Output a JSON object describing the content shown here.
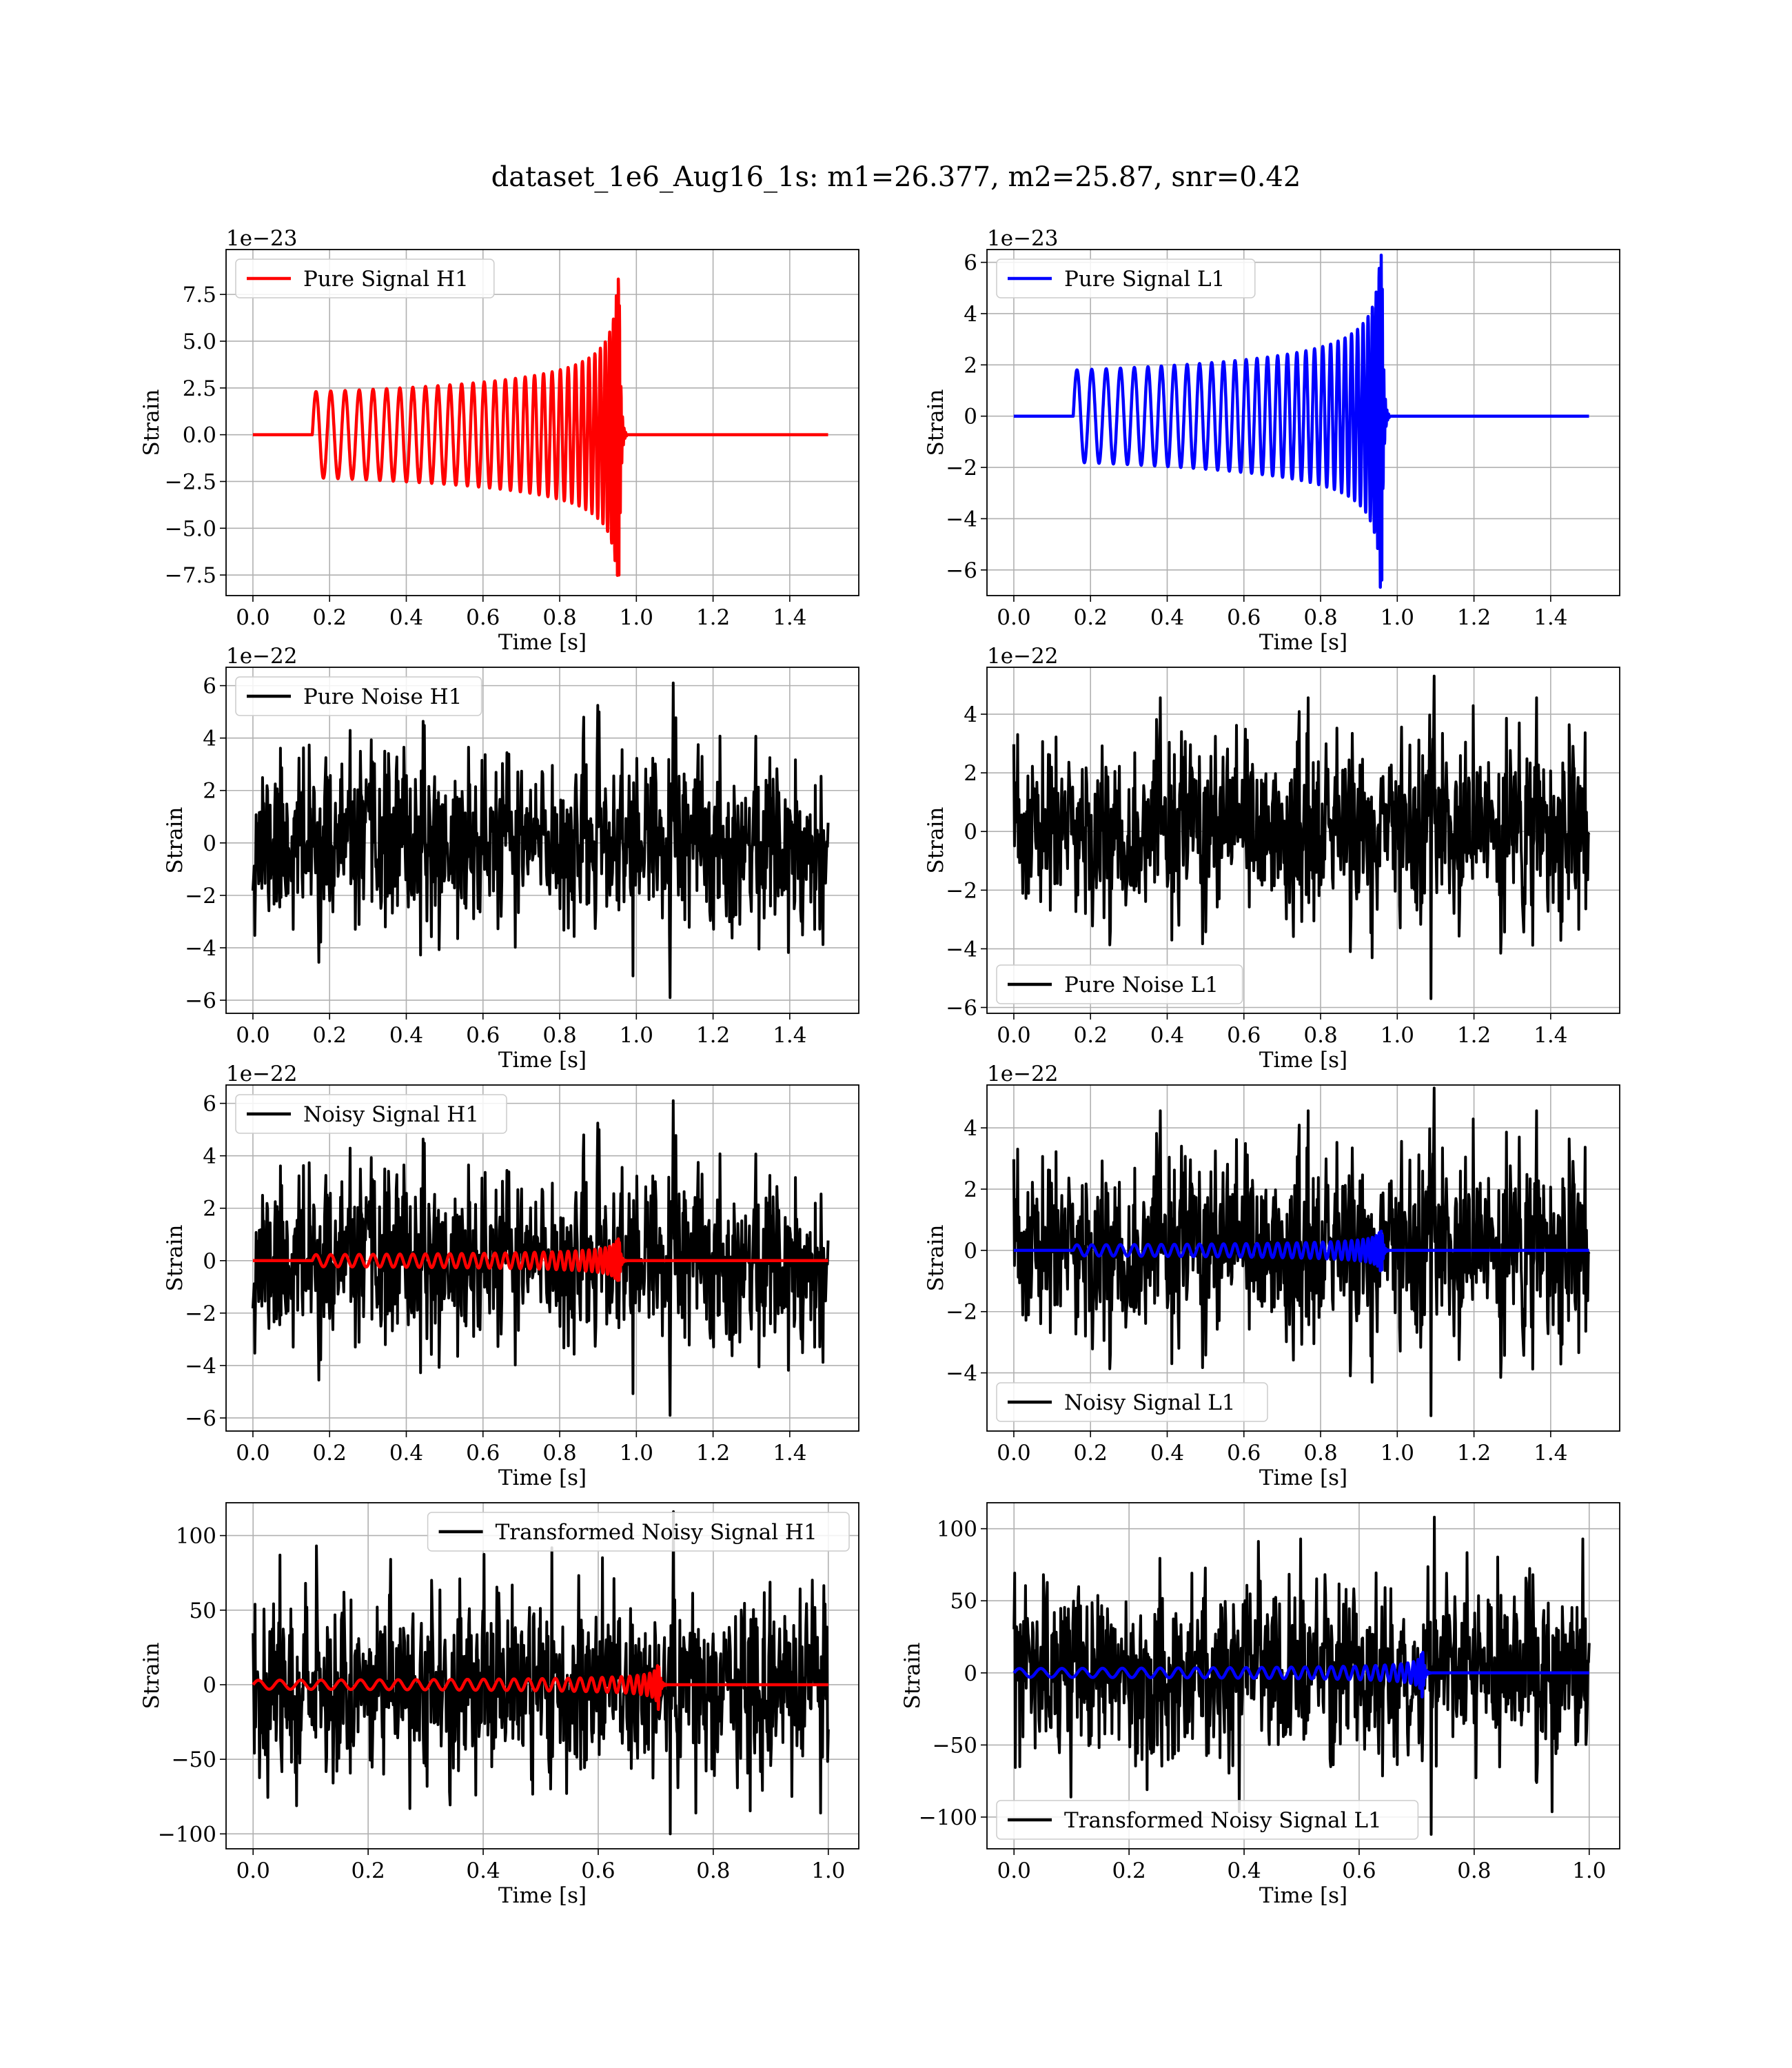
{
  "figure": {
    "suptitle": "dataset_1e6_Aug16_1s: m1=26.377, m2=25.87, snr=0.42"
  },
  "colors": {
    "h1_signal": "#ff0000",
    "l1_signal": "#0000ff",
    "noise": "#000000",
    "grid": "#b0b0b0"
  },
  "chart_data": [
    {
      "type": "line",
      "panel": "pure-signal-h1",
      "xlabel": "Time [s]",
      "ylabel": "Strain",
      "offset_text": "1e−23",
      "xlim": [
        -0.07,
        1.58
      ],
      "ylim": [
        -8.6,
        9.9
      ],
      "xticks": [
        0.0,
        0.2,
        0.4,
        0.6,
        0.8,
        1.0,
        1.2,
        1.4
      ],
      "xtick_labels": [
        "0.0",
        "0.2",
        "0.4",
        "0.6",
        "0.8",
        "1.0",
        "1.2",
        "1.4"
      ],
      "yticks": [
        7.5,
        5.0,
        2.5,
        0.0,
        -2.5,
        -5.0,
        -7.5
      ],
      "ytick_labels": [
        "7.5",
        "5.0",
        "2.5",
        "0.0",
        "−2.5",
        "−5.0",
        "−7.5"
      ],
      "grid": true,
      "legend_loc": "upper-left",
      "series": [
        {
          "name": "Pure Signal H1",
          "color": "#ff0000",
          "kind": "chirp",
          "x_range": [
            0,
            1.5
          ],
          "onset": 0.155,
          "merger": 0.955,
          "base_amp": 2.3,
          "peak_pos": 9.0,
          "peak_neg": -7.7,
          "n_cycles": 33,
          "ringdown": 0.02
        }
      ]
    },
    {
      "type": "line",
      "panel": "pure-signal-l1",
      "xlabel": "Time [s]",
      "ylabel": "Strain",
      "offset_text": "1e−23",
      "xlim": [
        -0.07,
        1.58
      ],
      "ylim": [
        -7.0,
        6.5
      ],
      "xticks": [
        0.0,
        0.2,
        0.4,
        0.6,
        0.8,
        1.0,
        1.2,
        1.4
      ],
      "xtick_labels": [
        "0.0",
        "0.2",
        "0.4",
        "0.6",
        "0.8",
        "1.0",
        "1.2",
        "1.4"
      ],
      "yticks": [
        6,
        4,
        2,
        0,
        -2,
        -4,
        -6
      ],
      "ytick_labels": [
        "6",
        "4",
        "2",
        "0",
        "−2",
        "−4",
        "−6"
      ],
      "grid": true,
      "legend_loc": "upper-left",
      "series": [
        {
          "name": "Pure Signal L1",
          "color": "#0000ff",
          "kind": "chirp",
          "x_range": [
            0,
            1.5
          ],
          "onset": 0.155,
          "merger": 0.96,
          "base_amp": 1.8,
          "peak_pos": 6.3,
          "peak_neg": -6.9,
          "n_cycles": 33,
          "ringdown": 0.02
        }
      ]
    },
    {
      "type": "line",
      "panel": "pure-noise-h1",
      "xlabel": "Time [s]",
      "ylabel": "Strain",
      "offset_text": "1e−22",
      "xlim": [
        -0.07,
        1.58
      ],
      "ylim": [
        -6.5,
        6.7
      ],
      "xticks": [
        0.0,
        0.2,
        0.4,
        0.6,
        0.8,
        1.0,
        1.2,
        1.4
      ],
      "xtick_labels": [
        "0.0",
        "0.2",
        "0.4",
        "0.6",
        "0.8",
        "1.0",
        "1.2",
        "1.4"
      ],
      "yticks": [
        6,
        4,
        2,
        0,
        -2,
        -4,
        -6
      ],
      "ytick_labels": [
        "6",
        "4",
        "2",
        "0",
        "−2",
        "−4",
        "−6"
      ],
      "grid": true,
      "legend_loc": "upper-left",
      "series": [
        {
          "name": "Pure Noise H1",
          "color": "#000000",
          "kind": "noise",
          "x_range": [
            0,
            1.5
          ],
          "max": 6.1,
          "min": -5.9,
          "sigma": 1.6,
          "seed": 11
        }
      ]
    },
    {
      "type": "line",
      "panel": "pure-noise-l1",
      "xlabel": "Time [s]",
      "ylabel": "Strain",
      "offset_text": "1e−22",
      "xlim": [
        -0.07,
        1.58
      ],
      "ylim": [
        -6.2,
        5.6
      ],
      "xticks": [
        0.0,
        0.2,
        0.4,
        0.6,
        0.8,
        1.0,
        1.2,
        1.4
      ],
      "xtick_labels": [
        "0.0",
        "0.2",
        "0.4",
        "0.6",
        "0.8",
        "1.0",
        "1.2",
        "1.4"
      ],
      "yticks": [
        4,
        2,
        0,
        -2,
        -4,
        -6
      ],
      "ytick_labels": [
        "4",
        "2",
        "0",
        "−2",
        "−4",
        "−6"
      ],
      "grid": true,
      "legend_loc": "lower-left",
      "series": [
        {
          "name": "Pure Noise L1",
          "color": "#000000",
          "kind": "noise",
          "x_range": [
            0,
            1.5
          ],
          "max": 5.3,
          "min": -5.7,
          "sigma": 1.5,
          "seed": 23
        }
      ]
    },
    {
      "type": "line",
      "panel": "noisy-signal-h1",
      "xlabel": "Time [s]",
      "ylabel": "Strain",
      "offset_text": "1e−22",
      "xlim": [
        -0.07,
        1.58
      ],
      "ylim": [
        -6.5,
        6.7
      ],
      "xticks": [
        0.0,
        0.2,
        0.4,
        0.6,
        0.8,
        1.0,
        1.2,
        1.4
      ],
      "xtick_labels": [
        "0.0",
        "0.2",
        "0.4",
        "0.6",
        "0.8",
        "1.0",
        "1.2",
        "1.4"
      ],
      "yticks": [
        6,
        4,
        2,
        0,
        -2,
        -4,
        -6
      ],
      "ytick_labels": [
        "6",
        "4",
        "2",
        "0",
        "−2",
        "−4",
        "−6"
      ],
      "grid": true,
      "legend_loc": "upper-left",
      "series": [
        {
          "name": "Noisy Signal H1",
          "color": "#000000",
          "kind": "noise",
          "x_range": [
            0,
            1.5
          ],
          "max": 6.1,
          "min": -5.9,
          "sigma": 1.6,
          "seed": 11
        },
        {
          "color": "#ff0000",
          "kind": "chirp",
          "x_range": [
            0,
            1.5
          ],
          "onset": 0.155,
          "merger": 0.955,
          "base_amp": 0.23,
          "peak_pos": 0.9,
          "peak_neg": -0.77,
          "n_cycles": 33,
          "ringdown": 0.02
        }
      ]
    },
    {
      "type": "line",
      "panel": "noisy-signal-l1",
      "xlabel": "Time [s]",
      "ylabel": "Strain",
      "offset_text": "1e−22",
      "xlim": [
        -0.07,
        1.58
      ],
      "ylim": [
        -5.9,
        5.4
      ],
      "xticks": [
        0.0,
        0.2,
        0.4,
        0.6,
        0.8,
        1.0,
        1.2,
        1.4
      ],
      "xtick_labels": [
        "0.0",
        "0.2",
        "0.4",
        "0.6",
        "0.8",
        "1.0",
        "1.2",
        "1.4"
      ],
      "yticks": [
        4,
        2,
        0,
        -2,
        -4
      ],
      "ytick_labels": [
        "4",
        "2",
        "0",
        "−2",
        "−4"
      ],
      "grid": true,
      "legend_loc": "lower-left",
      "series": [
        {
          "name": "Noisy Signal L1",
          "color": "#000000",
          "kind": "noise",
          "x_range": [
            0,
            1.5
          ],
          "max": 5.3,
          "min": -5.4,
          "sigma": 1.5,
          "seed": 23
        },
        {
          "color": "#0000ff",
          "kind": "chirp",
          "x_range": [
            0,
            1.5
          ],
          "onset": 0.155,
          "merger": 0.96,
          "base_amp": 0.18,
          "peak_pos": 0.63,
          "peak_neg": -0.69,
          "n_cycles": 33,
          "ringdown": 0.02
        }
      ]
    },
    {
      "type": "line",
      "panel": "transformed-noisy-signal-h1",
      "xlabel": "Time [s]",
      "ylabel": "Strain",
      "offset_text": "",
      "xlim": [
        -0.047,
        1.053
      ],
      "ylim": [
        -110,
        122
      ],
      "xticks": [
        0.0,
        0.2,
        0.4,
        0.6,
        0.8,
        1.0
      ],
      "xtick_labels": [
        "0.0",
        "0.2",
        "0.4",
        "0.6",
        "0.8",
        "1.0"
      ],
      "yticks": [
        100,
        50,
        0,
        -50,
        -100
      ],
      "ytick_labels": [
        "100",
        "50",
        "0",
        "−50",
        "−100"
      ],
      "grid": true,
      "legend_loc": "upper-right",
      "series": [
        {
          "name": "Transformed Noisy Signal H1",
          "color": "#000000",
          "kind": "noise",
          "x_range": [
            0,
            1.0
          ],
          "max": 116,
          "min": -100,
          "sigma": 30,
          "seed": 37
        },
        {
          "color": "#ff0000",
          "kind": "chirp",
          "x_range": [
            0,
            1.0
          ],
          "onset": 0.0,
          "merger": 0.705,
          "base_amp": 3,
          "peak_pos": 15,
          "peak_neg": -20,
          "n_cycles": 30,
          "ringdown": 0.015
        }
      ]
    },
    {
      "type": "line",
      "panel": "transformed-noisy-signal-l1",
      "xlabel": "Time [s]",
      "ylabel": "Strain",
      "offset_text": "",
      "xlim": [
        -0.047,
        1.053
      ],
      "ylim": [
        -122,
        118
      ],
      "xticks": [
        0.0,
        0.2,
        0.4,
        0.6,
        0.8,
        1.0
      ],
      "xtick_labels": [
        "0.0",
        "0.2",
        "0.4",
        "0.6",
        "0.8",
        "1.0"
      ],
      "yticks": [
        100,
        50,
        0,
        -50,
        -100
      ],
      "ytick_labels": [
        "100",
        "50",
        "0",
        "−50",
        "−100"
      ],
      "grid": true,
      "legend_loc": "lower-left",
      "series": [
        {
          "name": "Transformed Noisy Signal L1",
          "color": "#000000",
          "kind": "noise",
          "x_range": [
            0,
            1.0
          ],
          "max": 108,
          "min": -112,
          "sigma": 30,
          "seed": 53
        },
        {
          "color": "#0000ff",
          "kind": "chirp",
          "x_range": [
            0,
            1.0
          ],
          "onset": 0.0,
          "merger": 0.71,
          "base_amp": 3,
          "peak_pos": 18,
          "peak_neg": -20,
          "n_cycles": 30,
          "ringdown": 0.015
        }
      ]
    }
  ]
}
